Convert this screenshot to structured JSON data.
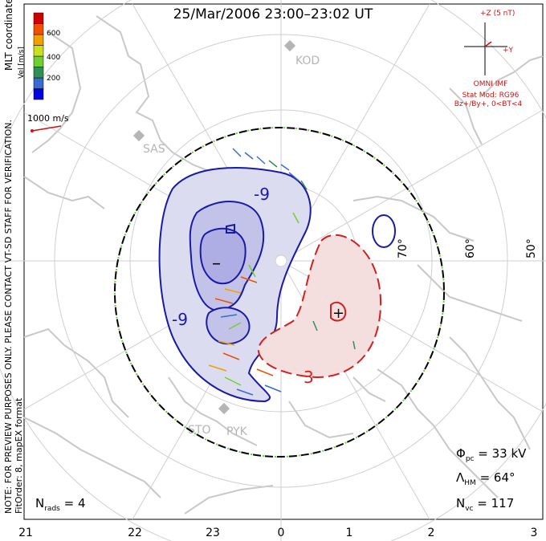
{
  "title": "25/Mar/2006 23:00–23:02 UT",
  "side_note": {
    "line1": "NOTE: FOR PREVIEW PURPOSES ONLY. PLEASE CONTACT VT-SD STAFF FOR VERIFICATION.",
    "line2": "FitOrder: 8, mapEX format"
  },
  "coordinates_label": "MLT coordinates",
  "colorbar": {
    "label": "Vel [m/s]",
    "ticks": [
      "600",
      "400",
      "200"
    ],
    "colors": [
      "#0000e0",
      "#3a6ccf",
      "#2f8f55",
      "#6fcf2f",
      "#c8e020",
      "#f0a000",
      "#f05000",
      "#d00000"
    ]
  },
  "reference_vector": {
    "label": "1000 m/s"
  },
  "imf": {
    "z_label": "+Z (5 nT)",
    "y_label": "+Y",
    "source": "OMNI IMF",
    "model_line1": "Stat Mod: RG96",
    "model_line2": "Bz+/By+, 0<BT<4"
  },
  "stations": [
    "KOD",
    "SAS",
    "STO",
    "PYK"
  ],
  "latitude_labels": [
    "70°",
    "60°",
    "50°"
  ],
  "contour_labels": [
    "-9",
    "-9",
    "3",
    "–",
    "+"
  ],
  "stats": {
    "phi_symbol": "Φ",
    "phi_sub": "pc",
    "phi_value": "= 33 kV",
    "lambda_symbol": "Λ",
    "lambda_sub": "HM",
    "lambda_value": "= 64°",
    "nvc_symbol": "N",
    "nvc_sub": "vc",
    "nvc_value": "= 117"
  },
  "nrads": {
    "symbol": "N",
    "sub": "rads",
    "value": "= 4"
  },
  "mlt_ticks": [
    "21",
    "22",
    "23",
    "0",
    "1",
    "2",
    "3"
  ]
}
